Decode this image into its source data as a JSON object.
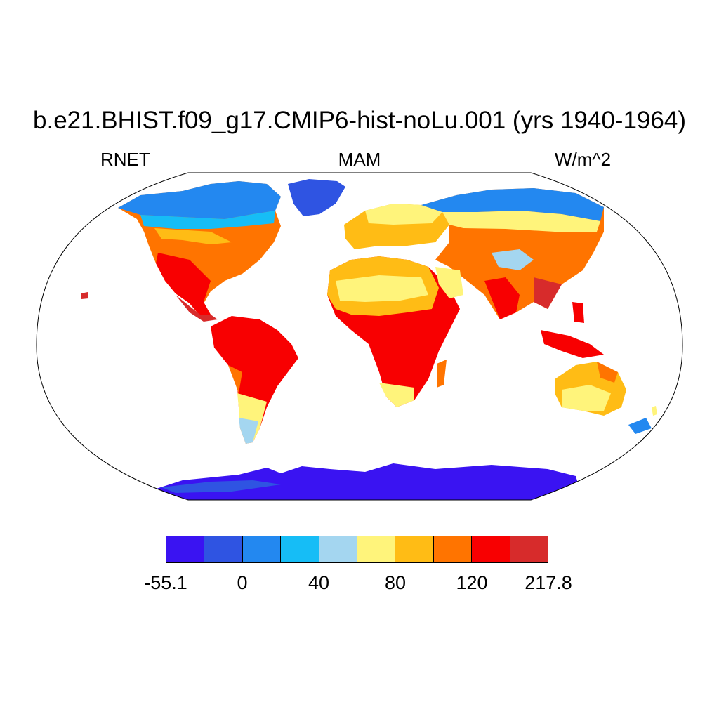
{
  "title": "b.e21.BHIST.f09_g17.CMIP6-hist-noLu.001 (yrs 1940-1964)",
  "left_label": "RNET",
  "center_label": "MAM",
  "right_label": "W/m^2",
  "colorbar": {
    "colors": [
      "#3a13f2",
      "#2f54e2",
      "#2388f0",
      "#16bdf6",
      "#a4d6f0",
      "#fff47b",
      "#ffbc15",
      "#ff7400",
      "#f80001",
      "#d72b2b"
    ],
    "labels": [
      "-55.1",
      "0",
      "40",
      "80",
      "120",
      "217.8"
    ]
  }
}
